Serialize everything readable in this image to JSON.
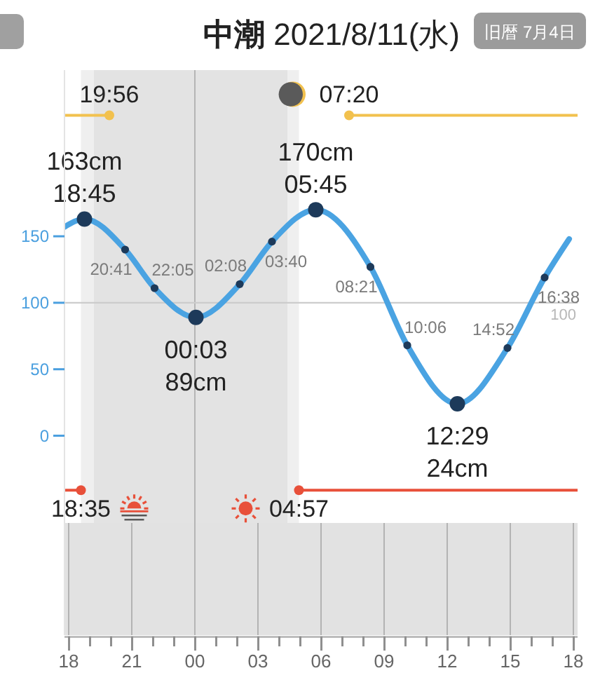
{
  "chart_data": {
    "type": "line",
    "title": "中潮 2021/8/11(水)",
    "subtitle": "旧暦 7月4日",
    "xlim": [
      "2021-08-10T17:48",
      "2021-08-11T18:12"
    ],
    "xticks": [
      {
        "value": "2021-08-10T18:00",
        "label": "18"
      },
      {
        "value": "2021-08-10T19:00",
        "label": null
      },
      {
        "value": "2021-08-10T20:00",
        "label": null
      },
      {
        "value": "2021-08-10T21:00",
        "label": "21"
      },
      {
        "value": "2021-08-10T22:00",
        "label": null
      },
      {
        "value": "2021-08-10T23:00",
        "label": null
      },
      {
        "value": "2021-08-11T00:00",
        "label": "00"
      },
      {
        "value": "2021-08-11T01:00",
        "label": null
      },
      {
        "value": "2021-08-11T02:00",
        "label": null
      },
      {
        "value": "2021-08-11T03:00",
        "label": "03"
      },
      {
        "value": "2021-08-11T04:00",
        "label": null
      },
      {
        "value": "2021-08-11T05:00",
        "label": null
      },
      {
        "value": "2021-08-11T06:00",
        "label": "06"
      },
      {
        "value": "2021-08-11T07:00",
        "label": null
      },
      {
        "value": "2021-08-11T08:00",
        "label": null
      },
      {
        "value": "2021-08-11T09:00",
        "label": "09"
      },
      {
        "value": "2021-08-11T10:00",
        "label": null
      },
      {
        "value": "2021-08-11T11:00",
        "label": null
      },
      {
        "value": "2021-08-11T12:00",
        "label": "12"
      },
      {
        "value": "2021-08-11T13:00",
        "label": null
      },
      {
        "value": "2021-08-11T14:00",
        "label": null
      },
      {
        "value": "2021-08-11T15:00",
        "label": "15"
      },
      {
        "value": "2021-08-11T16:00",
        "label": null
      },
      {
        "value": "2021-08-11T17:00",
        "label": null
      },
      {
        "value": "2021-08-11T18:00",
        "label": "18"
      }
    ],
    "ylim": [
      -150,
      275
    ],
    "yticks": [
      0,
      50,
      100,
      150
    ],
    "series": [
      {
        "color": "#4aa3e2",
        "marker": "none",
        "x": [
          "2021-08-10T17:48",
          "2021-08-10T18:45",
          "2021-08-10T20:41",
          "2021-08-10T22:05",
          "2021-08-11T00:03",
          "2021-08-11T02:08",
          "2021-08-11T03:40",
          "2021-08-11T05:45",
          "2021-08-11T08:21",
          "2021-08-11T10:06",
          "2021-08-11T12:29",
          "2021-08-11T14:52",
          "2021-08-11T16:38",
          "2021-08-11T17:48"
        ],
        "values": [
          157,
          163,
          140,
          111,
          89,
          114,
          146,
          170,
          127,
          68,
          24,
          66,
          119,
          148
        ]
      },
      {
        "type": "scatter",
        "color": "#1d3a5a",
        "marker": "circle",
        "x": [
          "2021-08-10T18:45",
          "2021-08-11T00:03",
          "2021-08-11T05:45",
          "2021-08-11T12:29"
        ],
        "values": [
          163,
          89,
          170,
          24
        ]
      },
      {
        "type": "scatter",
        "color": "#1d3a5a",
        "marker": "circle",
        "x": [
          "2021-08-10T20:41",
          "2021-08-10T22:05",
          "2021-08-11T02:08",
          "2021-08-11T03:40",
          "2021-08-11T08:21",
          "2021-08-11T10:06",
          "2021-08-11T14:52",
          "2021-08-11T16:38"
        ],
        "values": [
          140,
          111,
          114,
          146,
          127,
          68,
          66,
          119
        ]
      },
      {
        "color": "#f2c14e",
        "marker": "circle",
        "x": [
          "2021-08-10T17:48",
          "2021-08-10T19:56"
        ],
        "values": [
          241,
          241
        ]
      },
      {
        "color": "#f2c14e",
        "marker": "circle",
        "x": [
          "2021-08-11T07:20",
          "2021-08-11T18:12"
        ],
        "values": [
          241,
          241
        ]
      },
      {
        "color": "#e8503a",
        "marker": "circle",
        "x": [
          "2021-08-10T17:48",
          "2021-08-10T18:35"
        ],
        "values": [
          -41,
          -41
        ]
      },
      {
        "color": "#e8503a",
        "marker": "circle",
        "x": [
          "2021-08-11T04:57",
          "2021-08-11T18:12"
        ],
        "values": [
          -41,
          -41
        ]
      }
    ],
    "annotations": [
      {
        "text": "163cm\n18:45",
        "x": "2021-08-10T18:45",
        "y": 163
      },
      {
        "text": "00:03\n89cm",
        "x": "2021-08-11T00:03",
        "y": 89
      },
      {
        "text": "170cm\n05:45",
        "x": "2021-08-11T05:45",
        "y": 170
      },
      {
        "text": "12:29\n24cm",
        "x": "2021-08-11T12:29",
        "y": 24
      },
      {
        "text": "20:41",
        "x": "2021-08-10T20:41",
        "y": 140
      },
      {
        "text": "22:05",
        "x": "2021-08-10T22:05",
        "y": 111
      },
      {
        "text": "02:08",
        "x": "2021-08-11T02:08",
        "y": 114
      },
      {
        "text": "03:40",
        "x": "2021-08-11T03:40",
        "y": 146
      },
      {
        "text": "08:21",
        "x": "2021-08-11T08:21",
        "y": 127
      },
      {
        "text": "10:06",
        "x": "2021-08-11T10:06",
        "y": 68
      },
      {
        "text": "14:52",
        "x": "2021-08-11T14:52",
        "y": 66
      },
      {
        "text": "16:38",
        "x": "2021-08-11T16:38",
        "y": 119
      },
      {
        "text": "19:56",
        "x": "2021-08-10T19:56",
        "y": 241
      },
      {
        "text": "07:20",
        "x": "2021-08-11T07:20",
        "y": 241
      },
      {
        "text": "18:35",
        "x": "2021-08-10T18:35",
        "y": -41
      },
      {
        "text": "04:57",
        "x": "2021-08-11T04:57",
        "y": -41
      }
    ],
    "ref_lines": [
      {
        "axis": "x",
        "value": "2021-08-11T00:00",
        "color": "#b5b5b5"
      },
      {
        "axis": "y",
        "value": 100,
        "label": "100",
        "color": "#cccccc"
      }
    ],
    "bands": [
      {
        "axis": "x",
        "from": "2021-08-10T18:35",
        "to": "2021-08-11T04:57",
        "color": "#efefef"
      },
      {
        "axis": "x",
        "from": "2021-08-10T19:12",
        "to": "2021-08-11T04:24",
        "color": "#e3e3e3"
      }
    ]
  }
}
